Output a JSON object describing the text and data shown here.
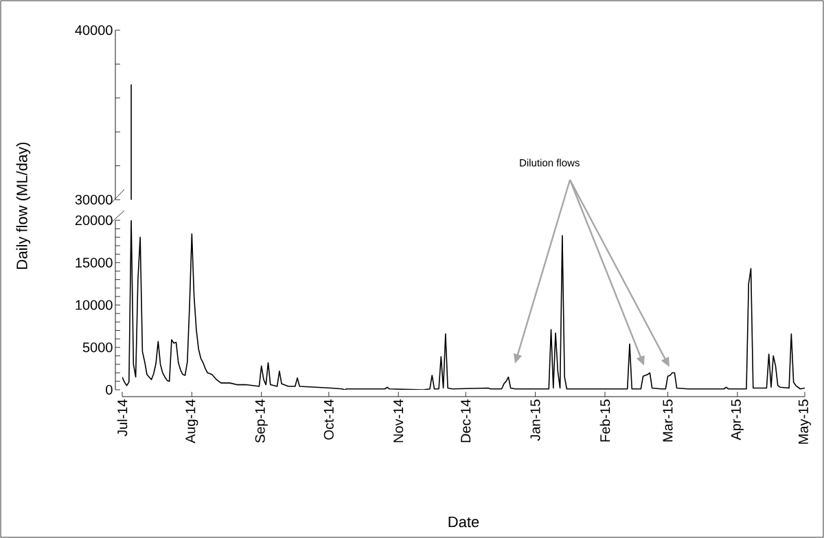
{
  "chart_data": [
    {
      "type": "line",
      "xlim": [
        "2014-07-01",
        "2015-05-01"
      ],
      "ylim": [
        30000,
        40000
      ],
      "yticks": [
        30000,
        {
          "value": 32000,
          "label": null
        },
        {
          "value": 34000,
          "label": null
        },
        {
          "value": 36000,
          "label": null
        },
        {
          "value": 38000,
          "label": null
        },
        40000
      ],
      "tick_labels": "y",
      "x": [
        "2014-07-05",
        "2014-07-05"
      ],
      "series": [
        {
          "color": "#000000",
          "values": [
            30000,
            36800
          ]
        }
      ]
    },
    {
      "type": "line",
      "xlabel": "Date",
      "ylabel": "Daily flow (ML/day)",
      "annotations": [
        "Dilution flows"
      ],
      "xlim": [
        "2014-07-01",
        "2015-05-01"
      ],
      "xticks": [
        {
          "value": "2014-07-01",
          "label": "Jul-14"
        },
        {
          "value": "2014-08-01",
          "label": "Aug-14"
        },
        {
          "value": "2014-09-01",
          "label": "Sep-14"
        },
        {
          "value": "2014-10-01",
          "label": "Oct-14"
        },
        {
          "value": "2014-11-01",
          "label": "Nov-14"
        },
        {
          "value": "2014-12-01",
          "label": "Dec-14"
        },
        {
          "value": "2015-01-01",
          "label": "Jan-15"
        },
        {
          "value": "2015-02-01",
          "label": "Feb-15"
        },
        {
          "value": "2015-03-01",
          "label": "Mar-15"
        },
        {
          "value": "2015-04-01",
          "label": "Apr-15"
        },
        {
          "value": "2015-05-01",
          "label": "May-15"
        }
      ],
      "ylim": [
        0,
        20000
      ],
      "yticks": [
        0,
        {
          "value": 1000,
          "label": null
        },
        {
          "value": 2000,
          "label": null
        },
        {
          "value": 3000,
          "label": null
        },
        {
          "value": 4000,
          "label": null
        },
        5000,
        {
          "value": 6000,
          "label": null
        },
        {
          "value": 7000,
          "label": null
        },
        {
          "value": 8000,
          "label": null
        },
        {
          "value": 9000,
          "label": null
        },
        10000,
        {
          "value": 11000,
          "label": null
        },
        {
          "value": 12000,
          "label": null
        },
        {
          "value": 13000,
          "label": null
        },
        {
          "value": 14000,
          "label": null
        },
        15000,
        {
          "value": 16000,
          "label": null
        },
        {
          "value": 17000,
          "label": null
        },
        {
          "value": 18000,
          "label": null
        },
        {
          "value": 19000,
          "label": null
        },
        20000
      ],
      "x": [
        "2014-07-01",
        "2014-07-02",
        "2014-07-03",
        "2014-07-04",
        "2014-07-05",
        "2014-07-06",
        "2014-07-07",
        "2014-07-08",
        "2014-07-09",
        "2014-07-10",
        "2014-07-11",
        "2014-07-12",
        "2014-07-13",
        "2014-07-14",
        "2014-07-15",
        "2014-07-16",
        "2014-07-17",
        "2014-07-18",
        "2014-07-19",
        "2014-07-20",
        "2014-07-21",
        "2014-07-22",
        "2014-07-23",
        "2014-07-24",
        "2014-07-25",
        "2014-07-26",
        "2014-07-27",
        "2014-07-28",
        "2014-07-29",
        "2014-07-30",
        "2014-07-31",
        "2014-08-01",
        "2014-08-02",
        "2014-08-03",
        "2014-08-04",
        "2014-08-05",
        "2014-08-06",
        "2014-08-07",
        "2014-08-08",
        "2014-08-10",
        "2014-08-12",
        "2014-08-14",
        "2014-08-18",
        "2014-08-21",
        "2014-08-25",
        "2014-08-31",
        "2014-09-01",
        "2014-09-02",
        "2014-09-03",
        "2014-09-04",
        "2014-09-05",
        "2014-09-08",
        "2014-09-09",
        "2014-09-10",
        "2014-09-13",
        "2014-09-16",
        "2014-09-17",
        "2014-09-18",
        "2014-09-25",
        "2014-10-02",
        "2014-10-07",
        "2014-10-08",
        "2014-10-09",
        "2014-10-26",
        "2014-10-27",
        "2014-10-28",
        "2014-11-12",
        "2014-11-15",
        "2014-11-16",
        "2014-11-17",
        "2014-11-19",
        "2014-11-20",
        "2014-11-21",
        "2014-11-22",
        "2014-11-23",
        "2014-11-25",
        "2014-12-11",
        "2014-12-12",
        "2014-12-17",
        "2014-12-18",
        "2014-12-19",
        "2014-12-20",
        "2014-12-21",
        "2014-12-23",
        "2015-01-07",
        "2015-01-08",
        "2015-01-09",
        "2015-01-10",
        "2015-01-11",
        "2015-01-12",
        "2015-01-13",
        "2015-01-14",
        "2015-01-15",
        "2015-01-20",
        "2015-02-11",
        "2015-02-12",
        "2015-02-13",
        "2015-02-17",
        "2015-02-18",
        "2015-02-19",
        "2015-02-20",
        "2015-02-21",
        "2015-02-22",
        "2015-02-26",
        "2015-02-28",
        "2015-03-01",
        "2015-03-02",
        "2015-03-03",
        "2015-03-04",
        "2015-03-05",
        "2015-03-10",
        "2015-03-26",
        "2015-03-27",
        "2015-03-28",
        "2015-04-05",
        "2015-04-06",
        "2015-04-07",
        "2015-04-08",
        "2015-04-14",
        "2015-04-15",
        "2015-04-16",
        "2015-04-17",
        "2015-04-18",
        "2015-04-19",
        "2015-04-20",
        "2015-04-24",
        "2015-04-25",
        "2015-04-26",
        "2015-04-27",
        "2015-04-29",
        "2015-05-01"
      ],
      "series": [
        {
          "color": "#000000",
          "values": [
            1500,
            900,
            500,
            900,
            20000,
            3000,
            1500,
            13000,
            18000,
            4500,
            3300,
            1800,
            1500,
            1200,
            1900,
            3100,
            5700,
            3000,
            2000,
            1500,
            1100,
            1000,
            5900,
            5500,
            5600,
            3200,
            2300,
            1800,
            1700,
            3300,
            10000,
            18400,
            11000,
            7100,
            4800,
            3700,
            3200,
            2500,
            2000,
            1800,
            1200,
            800,
            800,
            600,
            600,
            400,
            2800,
            1200,
            600,
            3200,
            600,
            400,
            2200,
            700,
            400,
            400,
            1400,
            400,
            300,
            200,
            100,
            0,
            100,
            100,
            300,
            100,
            0,
            100,
            1700,
            100,
            100,
            3900,
            200,
            6600,
            200,
            100,
            200,
            100,
            100,
            700,
            1000,
            1500,
            200,
            100,
            100,
            7100,
            200,
            6700,
            2200,
            200,
            18200,
            1500,
            100,
            100,
            100,
            5400,
            100,
            100,
            1600,
            1700,
            1800,
            2000,
            200,
            100,
            100,
            1600,
            1700,
            2000,
            2000,
            200,
            100,
            100,
            300,
            100,
            100,
            12500,
            14300,
            200,
            200,
            4200,
            300,
            4000,
            2800,
            500,
            300,
            200,
            6600,
            900,
            500,
            100,
            200
          ]
        }
      ]
    }
  ]
}
